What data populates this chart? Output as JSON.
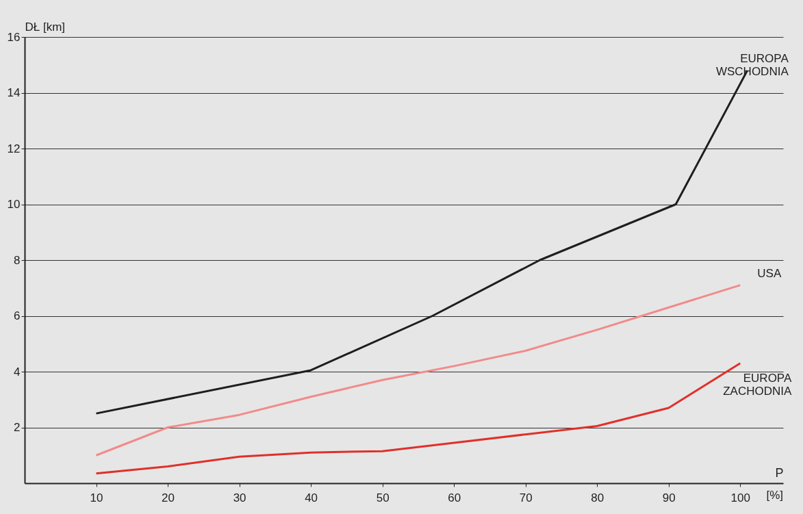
{
  "chart_data": {
    "type": "line",
    "xlabel": "P",
    "ylabel": "DŁ [km]",
    "annotations": [
      "[%]"
    ],
    "xlim": [
      0,
      106
    ],
    "xticks": [
      10,
      20,
      30,
      40,
      50,
      60,
      70,
      80,
      90,
      100
    ],
    "ylim": [
      0,
      16
    ],
    "yticks": [
      2,
      4,
      6,
      8,
      10,
      12,
      14,
      16
    ],
    "grid": "y",
    "legend": false,
    "marker": "none",
    "series": [
      {
        "name": "EUROPA WSCHODNIA",
        "color": "#1e1e1e",
        "x": [
          10,
          40,
          57,
          72,
          91,
          101
        ],
        "values": [
          2.5,
          4.05,
          6.0,
          8.0,
          10.0,
          14.8
        ]
      },
      {
        "name": "USA",
        "color": "#f28a8a",
        "x": [
          10,
          20,
          30,
          40,
          50,
          60,
          70,
          80,
          90,
          100
        ],
        "values": [
          1.0,
          2.0,
          2.45,
          3.1,
          3.7,
          4.2,
          4.75,
          5.5,
          6.3,
          7.1
        ]
      },
      {
        "name": "EUROPA ZACHODNIA",
        "color": "#e0302a",
        "x": [
          10,
          20,
          30,
          40,
          50,
          60,
          70,
          80,
          90,
          100
        ],
        "values": [
          0.35,
          0.6,
          0.95,
          1.1,
          1.15,
          1.45,
          1.75,
          2.05,
          2.7,
          4.3
        ]
      }
    ]
  }
}
